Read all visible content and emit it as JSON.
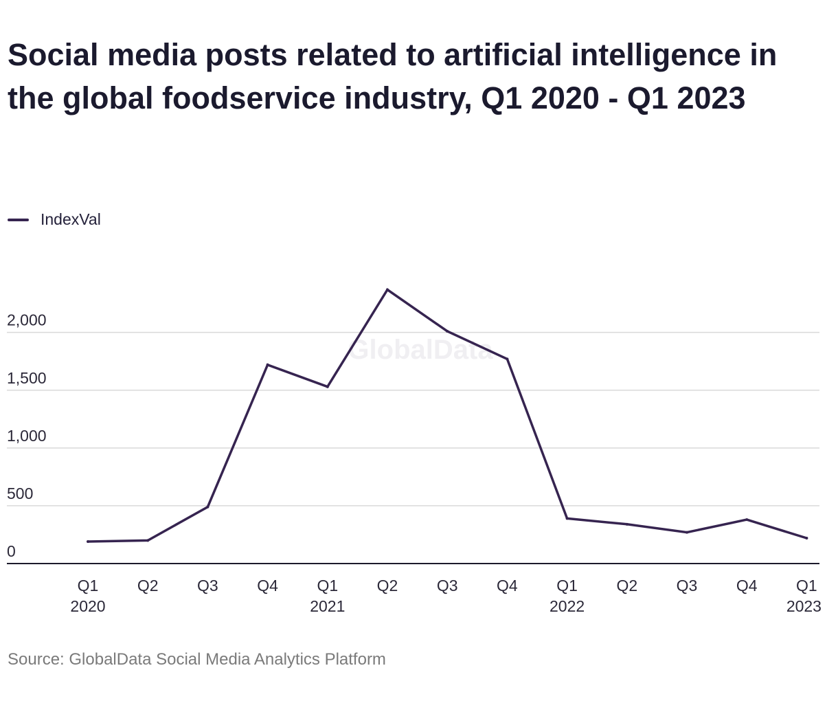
{
  "chart_data": {
    "type": "line",
    "title": "Social media posts related to artificial intelligence in the global foodservice industry, Q1 2020 - Q1 2023",
    "x": [
      {
        "quarter": "Q1",
        "year": "2020"
      },
      {
        "quarter": "Q2",
        "year": ""
      },
      {
        "quarter": "Q3",
        "year": ""
      },
      {
        "quarter": "Q4",
        "year": ""
      },
      {
        "quarter": "Q1",
        "year": "2021"
      },
      {
        "quarter": "Q2",
        "year": ""
      },
      {
        "quarter": "Q3",
        "year": ""
      },
      {
        "quarter": "Q4",
        "year": ""
      },
      {
        "quarter": "Q1",
        "year": "2022"
      },
      {
        "quarter": "Q2",
        "year": ""
      },
      {
        "quarter": "Q3",
        "year": ""
      },
      {
        "quarter": "Q4",
        "year": ""
      },
      {
        "quarter": "Q1",
        "year": "2023"
      }
    ],
    "series": [
      {
        "name": "IndexVal",
        "color": "#362450",
        "values": [
          190,
          200,
          490,
          1720,
          1530,
          2370,
          2010,
          1770,
          390,
          340,
          270,
          380,
          220
        ]
      }
    ],
    "yticks": [
      0,
      500,
      1000,
      1500,
      2000
    ],
    "ytick_labels": [
      "0",
      "500",
      "1,000",
      "1,500",
      "2,000"
    ],
    "ylim": [
      0,
      2450
    ],
    "grid": true,
    "legend_position": "top-left",
    "xlabel": "",
    "ylabel": ""
  },
  "watermark": "GlobalData",
  "source": "Source: GlobalData Social Media Analytics Platform",
  "colors": {
    "line": "#362450",
    "grid": "#d9d9d9",
    "axis": "#1c1a2b"
  }
}
